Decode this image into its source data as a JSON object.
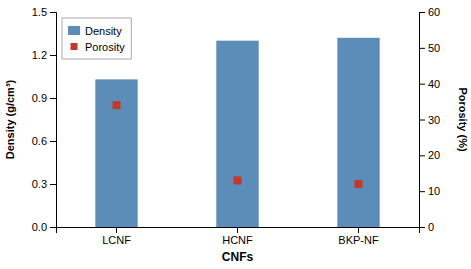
{
  "chart_data": {
    "type": "bar",
    "x_label": "CNFs",
    "y_label": "Density (g/cm³)",
    "y2_label": "Porosity (%)",
    "categories": [
      "LCNF",
      "HCNF",
      "BKP-NF"
    ],
    "series": [
      {
        "name": "Density",
        "type": "bar",
        "color": "#5B8DB8",
        "values": [
          1.03,
          1.3,
          1.32
        ]
      },
      {
        "name": "Porosity",
        "type": "scatter",
        "marker": "square",
        "color": "#C0392B",
        "axis": "y2",
        "values": [
          34,
          13,
          12
        ]
      }
    ],
    "ylim": [
      0.0,
      1.5
    ],
    "yticks": [
      {
        "value": 0.0,
        "label": "0.0"
      },
      0.3,
      0.6,
      0.9,
      1.2,
      1.5
    ],
    "y2lim": [
      0,
      60
    ],
    "y2ticks": [
      0,
      10,
      20,
      30,
      40,
      50,
      60
    ],
    "legend": "upper left"
  }
}
